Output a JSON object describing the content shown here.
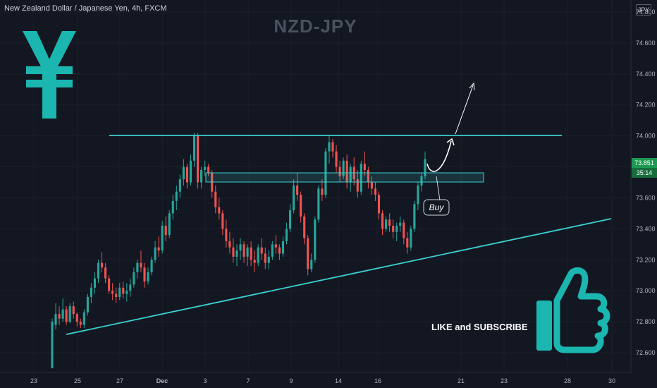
{
  "header": {
    "symbol_info": "New Zealand Dollar / Japanese Yen, 4h, FXCM",
    "watermark": "NZD-JPY",
    "currency_badge": "JPY"
  },
  "price_labels": {
    "last_price": "73.851",
    "countdown": "35:14"
  },
  "annotations": {
    "buy_label": "Buy",
    "cta": "LIKE and SUBSCRIBE",
    "yen_symbol": "¥"
  },
  "icons": [
    "yen-icon",
    "thumbs-up-icon"
  ],
  "colors": {
    "background": "#131722",
    "bull": "#26a69a",
    "bear": "#ef5350",
    "accent": "#1bb6b0",
    "lines": "#3bd1d1",
    "price_badge": "#1c9a52"
  },
  "chart_data": {
    "type": "candlestick",
    "symbol": "NZD/JPY",
    "timeframe": "4h",
    "x_ticks": [
      "23",
      "25",
      "27",
      "Dec",
      "3",
      "7",
      "9",
      "14",
      "16",
      "21",
      "23",
      "28",
      "30"
    ],
    "y_ticks": [
      "74.800",
      "74.600",
      "74.400",
      "74.200",
      "74.000",
      "73.800",
      "73.600",
      "73.400",
      "73.200",
      "73.000",
      "72.800",
      "72.600"
    ],
    "ylim": [
      72.52,
      74.85
    ],
    "ohlc": [
      [
        72.5,
        72.82,
        72.5,
        72.8
      ],
      [
        72.78,
        72.92,
        72.75,
        72.85
      ],
      [
        72.85,
        72.9,
        72.78,
        72.82
      ],
      [
        72.82,
        72.95,
        72.8,
        72.88
      ],
      [
        72.88,
        72.9,
        72.78,
        72.8
      ],
      [
        72.8,
        72.92,
        72.79,
        72.9
      ],
      [
        72.9,
        72.93,
        72.82,
        72.85
      ],
      [
        72.85,
        72.86,
        72.77,
        72.8
      ],
      [
        72.8,
        72.82,
        72.76,
        72.78
      ],
      [
        72.78,
        72.88,
        72.76,
        72.86
      ],
      [
        72.86,
        72.98,
        72.84,
        72.96
      ],
      [
        72.96,
        73.05,
        72.92,
        73.02
      ],
      [
        73.02,
        73.12,
        72.98,
        73.08
      ],
      [
        73.08,
        73.2,
        73.05,
        73.18
      ],
      [
        73.18,
        73.25,
        73.12,
        73.15
      ],
      [
        73.15,
        73.18,
        73.05,
        73.08
      ],
      [
        73.08,
        73.1,
        72.98,
        73.0
      ],
      [
        73.0,
        73.05,
        72.94,
        72.98
      ],
      [
        72.98,
        73.02,
        72.92,
        72.96
      ],
      [
        72.96,
        73.05,
        72.94,
        73.02
      ],
      [
        73.02,
        73.06,
        72.95,
        72.98
      ],
      [
        72.98,
        73.05,
        72.93,
        73.0
      ],
      [
        73.0,
        73.08,
        72.96,
        73.04
      ],
      [
        73.04,
        73.15,
        73.02,
        73.12
      ],
      [
        73.12,
        73.2,
        73.08,
        73.18
      ],
      [
        73.18,
        73.26,
        73.12,
        73.15
      ],
      [
        73.15,
        73.18,
        73.02,
        73.06
      ],
      [
        73.06,
        73.15,
        73.04,
        73.12
      ],
      [
        73.12,
        73.22,
        73.1,
        73.2
      ],
      [
        73.2,
        73.32,
        73.18,
        73.28
      ],
      [
        73.28,
        73.35,
        73.22,
        73.26
      ],
      [
        73.26,
        73.45,
        73.24,
        73.42
      ],
      [
        73.42,
        73.48,
        73.32,
        73.36
      ],
      [
        73.36,
        73.52,
        73.34,
        73.5
      ],
      [
        73.5,
        73.62,
        73.46,
        73.58
      ],
      [
        73.58,
        73.68,
        73.52,
        73.64
      ],
      [
        73.64,
        73.75,
        73.6,
        73.72
      ],
      [
        73.72,
        73.85,
        73.68,
        73.8
      ],
      [
        73.8,
        73.82,
        73.66,
        73.7
      ],
      [
        73.7,
        73.88,
        73.68,
        73.84
      ],
      [
        73.84,
        74.02,
        73.8,
        74.0
      ],
      [
        74.0,
        74.02,
        73.66,
        73.7
      ],
      [
        73.7,
        73.8,
        73.66,
        73.78
      ],
      [
        73.78,
        73.84,
        73.74,
        73.8
      ],
      [
        73.8,
        73.82,
        73.74,
        73.76
      ],
      [
        73.76,
        73.78,
        73.6,
        73.64
      ],
      [
        73.64,
        73.68,
        73.5,
        73.54
      ],
      [
        73.54,
        73.6,
        73.46,
        73.5
      ],
      [
        73.5,
        73.52,
        73.36,
        73.4
      ],
      [
        73.4,
        73.46,
        73.28,
        73.32
      ],
      [
        73.32,
        73.38,
        73.24,
        73.28
      ],
      [
        73.28,
        73.34,
        73.18,
        73.22
      ],
      [
        73.22,
        73.3,
        73.16,
        73.26
      ],
      [
        73.26,
        73.34,
        73.2,
        73.3
      ],
      [
        73.3,
        73.32,
        73.18,
        73.22
      ],
      [
        73.22,
        73.3,
        73.16,
        73.28
      ],
      [
        73.28,
        73.32,
        73.16,
        73.2
      ],
      [
        73.2,
        73.26,
        73.12,
        73.18
      ],
      [
        73.18,
        73.3,
        73.16,
        73.28
      ],
      [
        73.28,
        73.34,
        73.2,
        73.24
      ],
      [
        73.24,
        73.28,
        73.14,
        73.18
      ],
      [
        73.18,
        73.26,
        73.14,
        73.22
      ],
      [
        73.22,
        73.32,
        73.2,
        73.3
      ],
      [
        73.3,
        73.36,
        73.24,
        73.28
      ],
      [
        73.28,
        73.3,
        73.2,
        73.24
      ],
      [
        73.24,
        73.35,
        73.22,
        73.32
      ],
      [
        73.32,
        73.44,
        73.3,
        73.4
      ],
      [
        73.4,
        73.56,
        73.38,
        73.52
      ],
      [
        73.52,
        73.72,
        73.5,
        73.68
      ],
      [
        73.68,
        73.76,
        73.58,
        73.62
      ],
      [
        73.62,
        73.64,
        73.44,
        73.48
      ],
      [
        73.48,
        73.5,
        73.3,
        73.34
      ],
      [
        73.34,
        73.36,
        73.1,
        73.14
      ],
      [
        73.14,
        73.24,
        73.12,
        73.2
      ],
      [
        73.2,
        73.48,
        73.18,
        73.46
      ],
      [
        73.46,
        73.68,
        73.44,
        73.66
      ],
      [
        73.66,
        73.72,
        73.58,
        73.62
      ],
      [
        73.62,
        73.92,
        73.6,
        73.9
      ],
      [
        73.9,
        74.0,
        73.82,
        73.96
      ],
      [
        73.96,
        73.98,
        73.86,
        73.9
      ],
      [
        73.9,
        73.94,
        73.76,
        73.8
      ],
      [
        73.8,
        73.84,
        73.7,
        73.74
      ],
      [
        73.74,
        73.86,
        73.72,
        73.84
      ],
      [
        73.84,
        73.88,
        73.66,
        73.7
      ],
      [
        73.7,
        73.82,
        73.64,
        73.8
      ],
      [
        73.8,
        73.86,
        73.68,
        73.72
      ],
      [
        73.72,
        73.78,
        73.6,
        73.64
      ],
      [
        73.64,
        73.84,
        73.62,
        73.82
      ],
      [
        73.82,
        73.9,
        73.74,
        73.78
      ],
      [
        73.78,
        73.8,
        73.66,
        73.7
      ],
      [
        73.7,
        73.74,
        73.62,
        73.66
      ],
      [
        73.66,
        73.7,
        73.58,
        73.62
      ],
      [
        73.62,
        73.64,
        73.46,
        73.5
      ],
      [
        73.5,
        73.52,
        73.36,
        73.4
      ],
      [
        73.4,
        73.48,
        73.38,
        73.46
      ],
      [
        73.46,
        73.5,
        73.38,
        73.42
      ],
      [
        73.42,
        73.46,
        73.34,
        73.38
      ],
      [
        73.38,
        73.44,
        73.32,
        73.42
      ],
      [
        73.42,
        73.48,
        73.38,
        73.44
      ],
      [
        73.44,
        73.46,
        73.3,
        73.34
      ],
      [
        73.34,
        73.38,
        73.24,
        73.28
      ],
      [
        73.28,
        73.42,
        73.26,
        73.4
      ],
      [
        73.4,
        73.58,
        73.38,
        73.56
      ],
      [
        73.56,
        73.7,
        73.52,
        73.68
      ],
      [
        73.68,
        73.76,
        73.64,
        73.74
      ],
      [
        73.74,
        73.9,
        73.72,
        73.85
      ]
    ],
    "overlays": [
      {
        "kind": "resistance-line",
        "label": ""
      },
      {
        "kind": "support-zone",
        "label": ""
      },
      {
        "kind": "ascending-trendline",
        "label": ""
      },
      {
        "kind": "projected-path",
        "label": "Buy"
      }
    ]
  }
}
